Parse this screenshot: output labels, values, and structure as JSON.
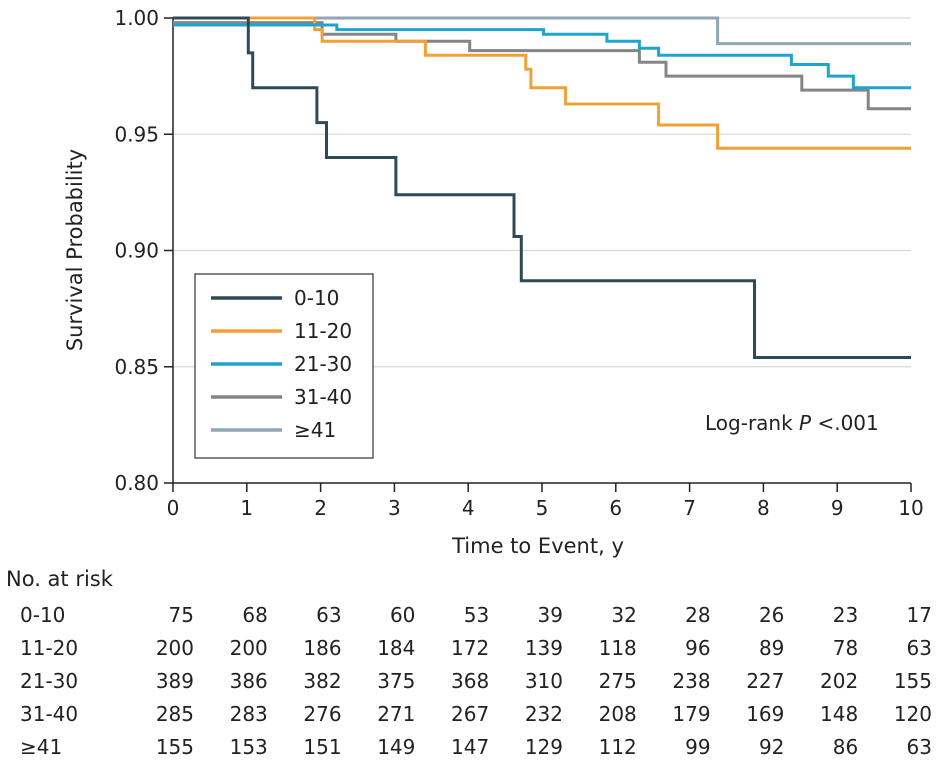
{
  "chart_data": {
    "type": "line",
    "step": true,
    "xlabel": "Time to Event, y",
    "ylabel": "Survival Probability",
    "xlim": [
      0,
      10
    ],
    "ylim": [
      0.8,
      1.0
    ],
    "x_ticks": [
      "0",
      "1",
      "2",
      "3",
      "4",
      "5",
      "6",
      "7",
      "8",
      "9",
      "10"
    ],
    "y_ticks": [
      "0.80",
      "0.85",
      "0.90",
      "0.95",
      "1.00"
    ],
    "grid": "horizontal",
    "legend_position": "bottom-left",
    "annotation": {
      "prefix": "Log-rank ",
      "italic": "P",
      "suffix": " <.001"
    },
    "series": [
      {
        "name": "0-10",
        "color": "#2f4a57",
        "points": [
          [
            0,
            1.0
          ],
          [
            1.02,
            1.0
          ],
          [
            1.02,
            0.985
          ],
          [
            1.08,
            0.985
          ],
          [
            1.08,
            0.97
          ],
          [
            1.95,
            0.97
          ],
          [
            1.95,
            0.955
          ],
          [
            2.08,
            0.955
          ],
          [
            2.08,
            0.94
          ],
          [
            3.02,
            0.94
          ],
          [
            3.02,
            0.924
          ],
          [
            4.62,
            0.924
          ],
          [
            4.62,
            0.906
          ],
          [
            4.72,
            0.906
          ],
          [
            4.72,
            0.887
          ],
          [
            7.88,
            0.887
          ],
          [
            7.88,
            0.854
          ],
          [
            10,
            0.854
          ]
        ]
      },
      {
        "name": "11-20",
        "color": "#f0a035",
        "points": [
          [
            0,
            1.0
          ],
          [
            1.92,
            1.0
          ],
          [
            1.92,
            0.995
          ],
          [
            2.02,
            0.995
          ],
          [
            2.02,
            0.99
          ],
          [
            3.42,
            0.99
          ],
          [
            3.42,
            0.984
          ],
          [
            4.78,
            0.984
          ],
          [
            4.78,
            0.978
          ],
          [
            4.85,
            0.978
          ],
          [
            4.85,
            0.97
          ],
          [
            5.32,
            0.97
          ],
          [
            5.32,
            0.963
          ],
          [
            6.58,
            0.963
          ],
          [
            6.58,
            0.954
          ],
          [
            7.38,
            0.954
          ],
          [
            7.38,
            0.944
          ],
          [
            10,
            0.944
          ]
        ]
      },
      {
        "name": "21-30",
        "color": "#1fa4d0",
        "points": [
          [
            0,
            0.997
          ],
          [
            2.22,
            0.997
          ],
          [
            2.22,
            0.995
          ],
          [
            5.02,
            0.995
          ],
          [
            5.02,
            0.993
          ],
          [
            5.88,
            0.993
          ],
          [
            5.88,
            0.99
          ],
          [
            6.32,
            0.99
          ],
          [
            6.32,
            0.987
          ],
          [
            6.58,
            0.987
          ],
          [
            6.58,
            0.984
          ],
          [
            8.38,
            0.984
          ],
          [
            8.38,
            0.98
          ],
          [
            8.88,
            0.98
          ],
          [
            8.88,
            0.975
          ],
          [
            9.22,
            0.975
          ],
          [
            9.22,
            0.97
          ],
          [
            10,
            0.97
          ]
        ]
      },
      {
        "name": "31-40",
        "color": "#858585",
        "points": [
          [
            0,
            0.998
          ],
          [
            2.02,
            0.998
          ],
          [
            2.02,
            0.993
          ],
          [
            3.02,
            0.993
          ],
          [
            3.02,
            0.99
          ],
          [
            4.02,
            0.99
          ],
          [
            4.02,
            0.986
          ],
          [
            6.32,
            0.986
          ],
          [
            6.32,
            0.981
          ],
          [
            6.68,
            0.981
          ],
          [
            6.68,
            0.975
          ],
          [
            8.52,
            0.975
          ],
          [
            8.52,
            0.969
          ],
          [
            9.42,
            0.969
          ],
          [
            9.42,
            0.961
          ],
          [
            10,
            0.961
          ]
        ]
      },
      {
        "name": "≥41",
        "color": "#8fa7b3",
        "points": [
          [
            0,
            1.0
          ],
          [
            7.38,
            1.0
          ],
          [
            7.38,
            0.989
          ],
          [
            10,
            0.989
          ]
        ]
      }
    ]
  },
  "risk_table": {
    "title": "No. at risk",
    "rows": [
      {
        "label": "0-10",
        "values": [
          "75",
          "68",
          "63",
          "60",
          "53",
          "39",
          "32",
          "28",
          "26",
          "23",
          "17"
        ]
      },
      {
        "label": "11-20",
        "values": [
          "200",
          "200",
          "186",
          "184",
          "172",
          "139",
          "118",
          "96",
          "89",
          "78",
          "63"
        ]
      },
      {
        "label": "21-30",
        "values": [
          "389",
          "386",
          "382",
          "375",
          "368",
          "310",
          "275",
          "238",
          "227",
          "202",
          "155"
        ]
      },
      {
        "label": "31-40",
        "values": [
          "285",
          "283",
          "276",
          "271",
          "267",
          "232",
          "208",
          "179",
          "169",
          "148",
          "120"
        ]
      },
      {
        "label": "≥41",
        "values": [
          "155",
          "153",
          "151",
          "149",
          "147",
          "129",
          "112",
          "99",
          "92",
          "86",
          "63"
        ]
      }
    ]
  }
}
